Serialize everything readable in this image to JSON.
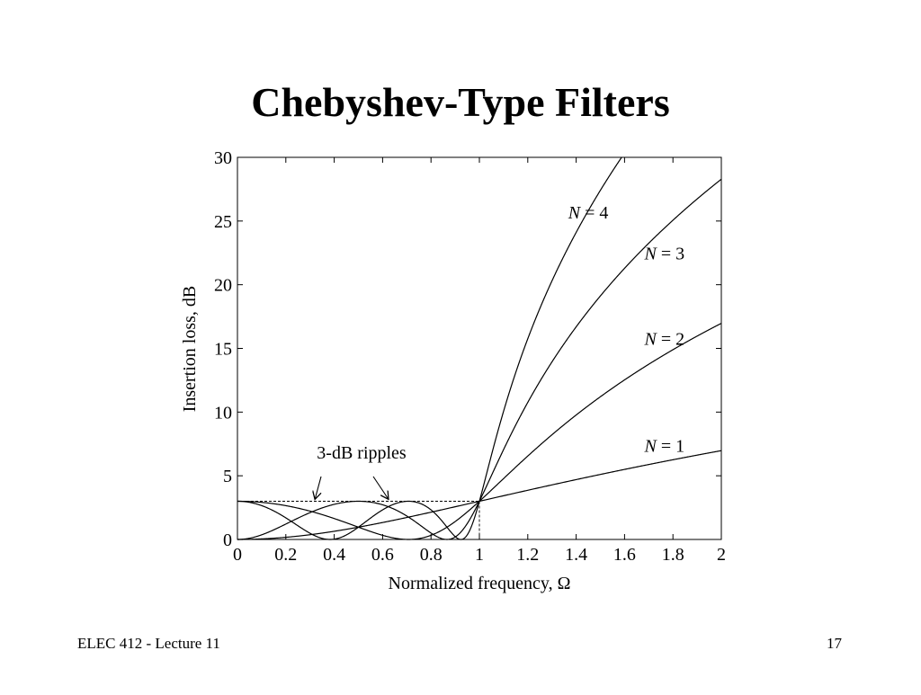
{
  "slide": {
    "title": "Chebyshev-Type Filters",
    "footer_left": "ELEC 412 - Lecture 11",
    "page_number": "17"
  },
  "chart_data": {
    "type": "line",
    "title": "",
    "xlabel": "Normalized frequency, Ω",
    "ylabel": "Insertion loss, dB",
    "xlim": [
      0,
      2
    ],
    "ylim": [
      0,
      30
    ],
    "x_ticks": [
      "0",
      "0.2",
      "0.4",
      "0.6",
      "0.8",
      "1",
      "1.2",
      "1.4",
      "1.6",
      "1.8",
      "2"
    ],
    "y_ticks": [
      "0",
      "5",
      "10",
      "15",
      "20",
      "25",
      "30"
    ],
    "grid": false,
    "ripple_db": 3,
    "series": [
      {
        "name": "N = 1",
        "order": 1,
        "label_italic": "N",
        "label_rest": " = 1"
      },
      {
        "name": "N = 2",
        "order": 2,
        "label_italic": "N",
        "label_rest": " = 2"
      },
      {
        "name": "N = 3",
        "order": 3,
        "label_italic": "N",
        "label_rest": " = 3"
      },
      {
        "name": "N = 4",
        "order": 4,
        "label_italic": "N",
        "label_rest": " = 4"
      }
    ],
    "annotations": [
      {
        "text": "3-dB ripples",
        "arrow_targets": [
          [
            0.31,
            3
          ],
          [
            0.6,
            3
          ]
        ]
      }
    ],
    "curves_color": "#000000"
  }
}
